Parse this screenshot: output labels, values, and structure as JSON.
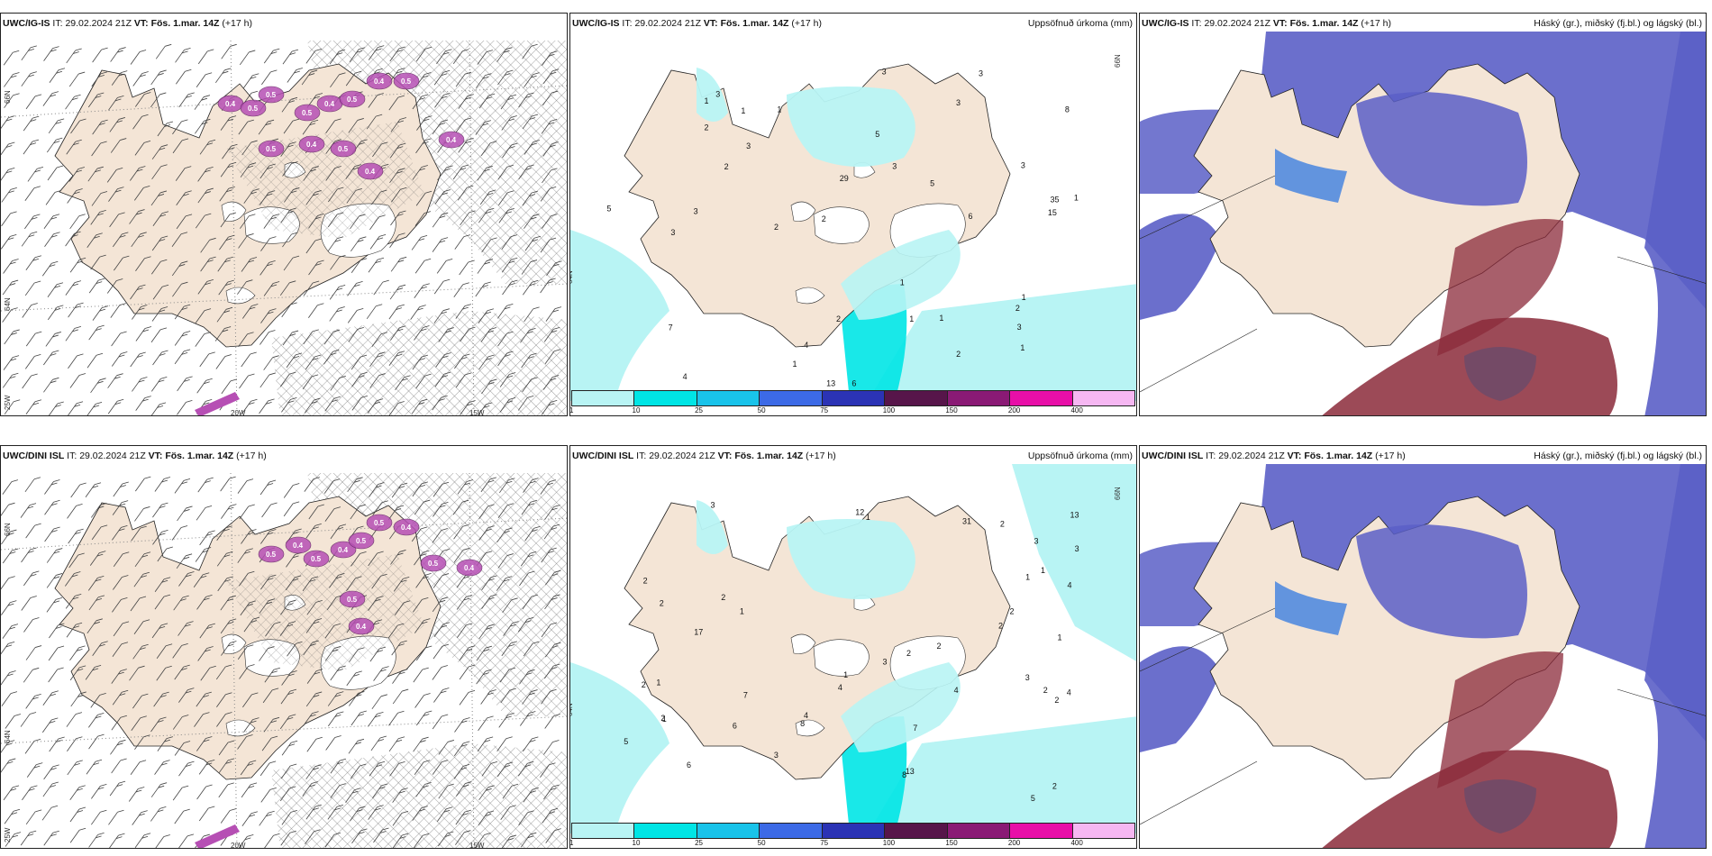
{
  "panels": [
    {
      "id": "top-left",
      "model": "UWC/IG-IS",
      "it_label": "IT:",
      "it": "29.02.2024 21Z",
      "vt_label": "VT:",
      "vt": "Fös. 1.mar. 14Z",
      "lead": "(+17 h)",
      "right_title": "",
      "map_type": "wind",
      "grid": {
        "lat1": "66N",
        "lat2": "64N",
        "lat3": "25W",
        "lon1": "20W",
        "lon2": "15W"
      },
      "values": [
        "0.4",
        "0.5",
        "0.5",
        "0.5",
        "0.4",
        "0.5",
        "0.4",
        "0.5",
        "0.4",
        "0.5",
        "0.4",
        "0.4",
        "0.5"
      ]
    },
    {
      "id": "top-middle",
      "model": "UWC/IG-IS",
      "it_label": "IT:",
      "it": "29.02.2024 21Z",
      "vt_label": "VT:",
      "vt": "Fös. 1.mar. 14Z",
      "lead": "(+17 h)",
      "right_title": "Uppsöfnuð úrkoma (mm)",
      "map_type": "precip",
      "grid": {
        "lat1": "66N",
        "lat2": "64N"
      },
      "values": [
        "1",
        "3",
        "3",
        "4",
        "1",
        "2",
        "3",
        "3",
        "6",
        "3",
        "2",
        "4",
        "5",
        "3",
        "2",
        "2",
        "3",
        "2",
        "2",
        "3",
        "2",
        "3",
        "1",
        "1",
        "1",
        "1",
        "1",
        "1",
        "7",
        "13",
        "8",
        "3",
        "1",
        "6",
        "5",
        "15",
        "5",
        "35",
        "29",
        "1"
      ]
    },
    {
      "id": "top-right",
      "model": "UWC/IG-IS",
      "it_label": "IT:",
      "it": "29.02.2024 21Z",
      "vt_label": "VT:",
      "vt": "Fös. 1.mar. 14Z",
      "lead": "(+17 h)",
      "right_title": "Háský (gr.), miðský (fj.bl.) og lágský (bl.)",
      "map_type": "cloud"
    },
    {
      "id": "bottom-left",
      "model": "UWC/DINI ISL",
      "it_label": "IT:",
      "it": "29.02.2024 21Z",
      "vt_label": "VT:",
      "vt": "Fös. 1.mar. 14Z",
      "lead": "(+17 h)",
      "right_title": "",
      "map_type": "wind",
      "grid": {
        "lat1": "66N",
        "lat2": "64N",
        "lat3": "25W",
        "lon1": "20W",
        "lon2": "15W"
      },
      "values": [
        "0.5",
        "0.4",
        "0.5",
        "0.4",
        "0.5",
        "0.5",
        "0.4",
        "0.5",
        "0.4",
        "0.5",
        "0.4"
      ]
    },
    {
      "id": "bottom-middle",
      "model": "UWC/DINI ISL",
      "it_label": "IT:",
      "it": "29.02.2024 21Z",
      "vt_label": "VT:",
      "vt": "Fös. 1.mar. 14Z",
      "lead": "(+17 h)",
      "right_title": "Uppsöfnuð úrkoma (mm)",
      "map_type": "precip",
      "grid": {
        "lat1": "66N",
        "lat2": "64N"
      },
      "values": [
        "2",
        "1",
        "2",
        "3",
        "2",
        "1",
        "5",
        "7",
        "6",
        "3",
        "12",
        "5",
        "2",
        "4",
        "3",
        "4",
        "4",
        "2",
        "2",
        "2",
        "3",
        "2",
        "2",
        "4",
        "3",
        "3",
        "1",
        "1",
        "1",
        "2",
        "2",
        "2",
        "1",
        "4",
        "2",
        "8",
        "7",
        "6",
        "8",
        "13",
        "13",
        "17",
        "31",
        "1",
        "1"
      ]
    },
    {
      "id": "bottom-right",
      "model": "UWC/DINI ISL",
      "it_label": "IT:",
      "it": "29.02.2024 21Z",
      "vt_label": "VT:",
      "vt": "Fös. 1.mar. 14Z",
      "lead": "(+17 h)",
      "right_title": "Háský (gr.), miðský (fj.bl.) og lágský (bl.)",
      "map_type": "cloud"
    }
  ],
  "colorbar": {
    "labels": [
      "1",
      "10",
      "25",
      "50",
      "75",
      "100",
      "150",
      "200",
      "400"
    ],
    "colors": [
      "#b8f4f4",
      "#00e5e5",
      "#19c3ea",
      "#3c6ae6",
      "#2b33b5",
      "#57154a",
      "#8a1a75",
      "#e80fa8",
      "#f6b7f2"
    ]
  },
  "colors": {
    "land": "#f4e5d6",
    "precip_light": "#b8f4f4",
    "cloud_high": "#5b5fc7",
    "cloud_mid": "#3d7fe0",
    "cloud_low_red": "#8b2a3a",
    "wind_fill": "#b64fb4"
  }
}
